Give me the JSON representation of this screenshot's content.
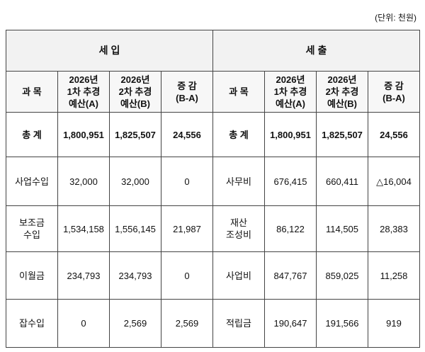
{
  "unit_note": "(단위: 천원)",
  "table": {
    "groups": [
      "세 입",
      "세 출"
    ],
    "columns": [
      [
        "과 목"
      ],
      [
        "2026년",
        "1차 추경",
        "예산(A)"
      ],
      [
        "2026년",
        "2차 추경",
        "예산(B)"
      ],
      [
        "증 감",
        "(B-A)"
      ],
      [
        "과 목"
      ],
      [
        "2026년",
        "1차 추경",
        "예산(A)"
      ],
      [
        "2026년",
        "2차 추경",
        "예산(B)"
      ],
      [
        "증 감",
        "(B-A)"
      ]
    ],
    "rows": [
      [
        "총 계",
        "1,800,951",
        "1,825,507",
        "24,556",
        "총 계",
        "1,800,951",
        "1,825,507",
        "24,556"
      ],
      [
        "사업수입",
        "32,000",
        "32,000",
        "0",
        "사무비",
        "676,415",
        "660,411",
        "△16,004"
      ],
      [
        [
          "보조금",
          "수입"
        ],
        "1,534,158",
        "1,556,145",
        "21,987",
        [
          "재산",
          "조성비"
        ],
        "86,122",
        "114,505",
        "28,383"
      ],
      [
        "이월금",
        "234,793",
        "234,793",
        "0",
        "사업비",
        "847,767",
        "859,025",
        "11,258"
      ],
      [
        "잡수입",
        "0",
        "2,569",
        "2,569",
        "적립금",
        "190,647",
        "191,566",
        "919"
      ]
    ]
  }
}
